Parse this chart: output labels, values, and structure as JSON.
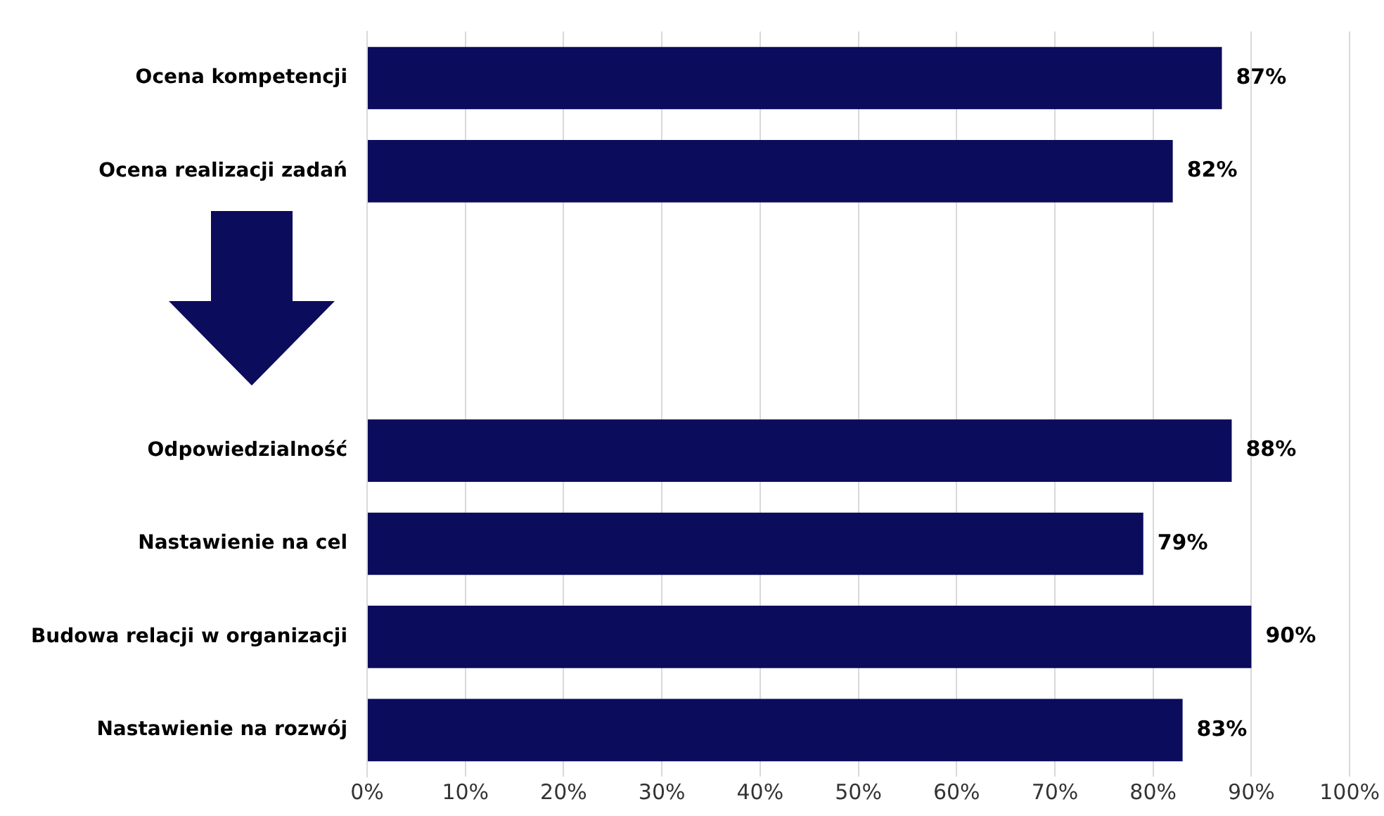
{
  "chart_data": {
    "type": "bar",
    "orientation": "horizontal",
    "categories": [
      "Ocena kompetencji",
      "Ocena realizacji zadań",
      null,
      null,
      "Odpowiedzialność",
      "Nastawienie na cel",
      "Budowa relacji w organizacji",
      "Nastawienie na rozwój"
    ],
    "values": [
      87,
      82,
      null,
      null,
      88,
      79,
      90,
      83
    ],
    "value_labels": [
      "87%",
      "82%",
      null,
      null,
      "88%",
      "79%",
      "90%",
      "83%"
    ],
    "color": "#0b0c5c",
    "xlim": [
      0,
      100
    ],
    "xticks": [
      {
        "value": 0,
        "label": "0%"
      },
      {
        "value": 10,
        "label": "10%"
      },
      {
        "value": 20,
        "label": "20%"
      },
      {
        "value": 30,
        "label": "30%"
      },
      {
        "value": 40,
        "label": "40%"
      },
      {
        "value": 50,
        "label": "50%"
      },
      {
        "value": 60,
        "label": "60%"
      },
      {
        "value": 70,
        "label": "70%"
      },
      {
        "value": 80,
        "label": "80%"
      },
      {
        "value": 90,
        "label": "90%"
      },
      {
        "value": 100,
        "label": "100%"
      }
    ],
    "grid": "x",
    "legend": false
  }
}
